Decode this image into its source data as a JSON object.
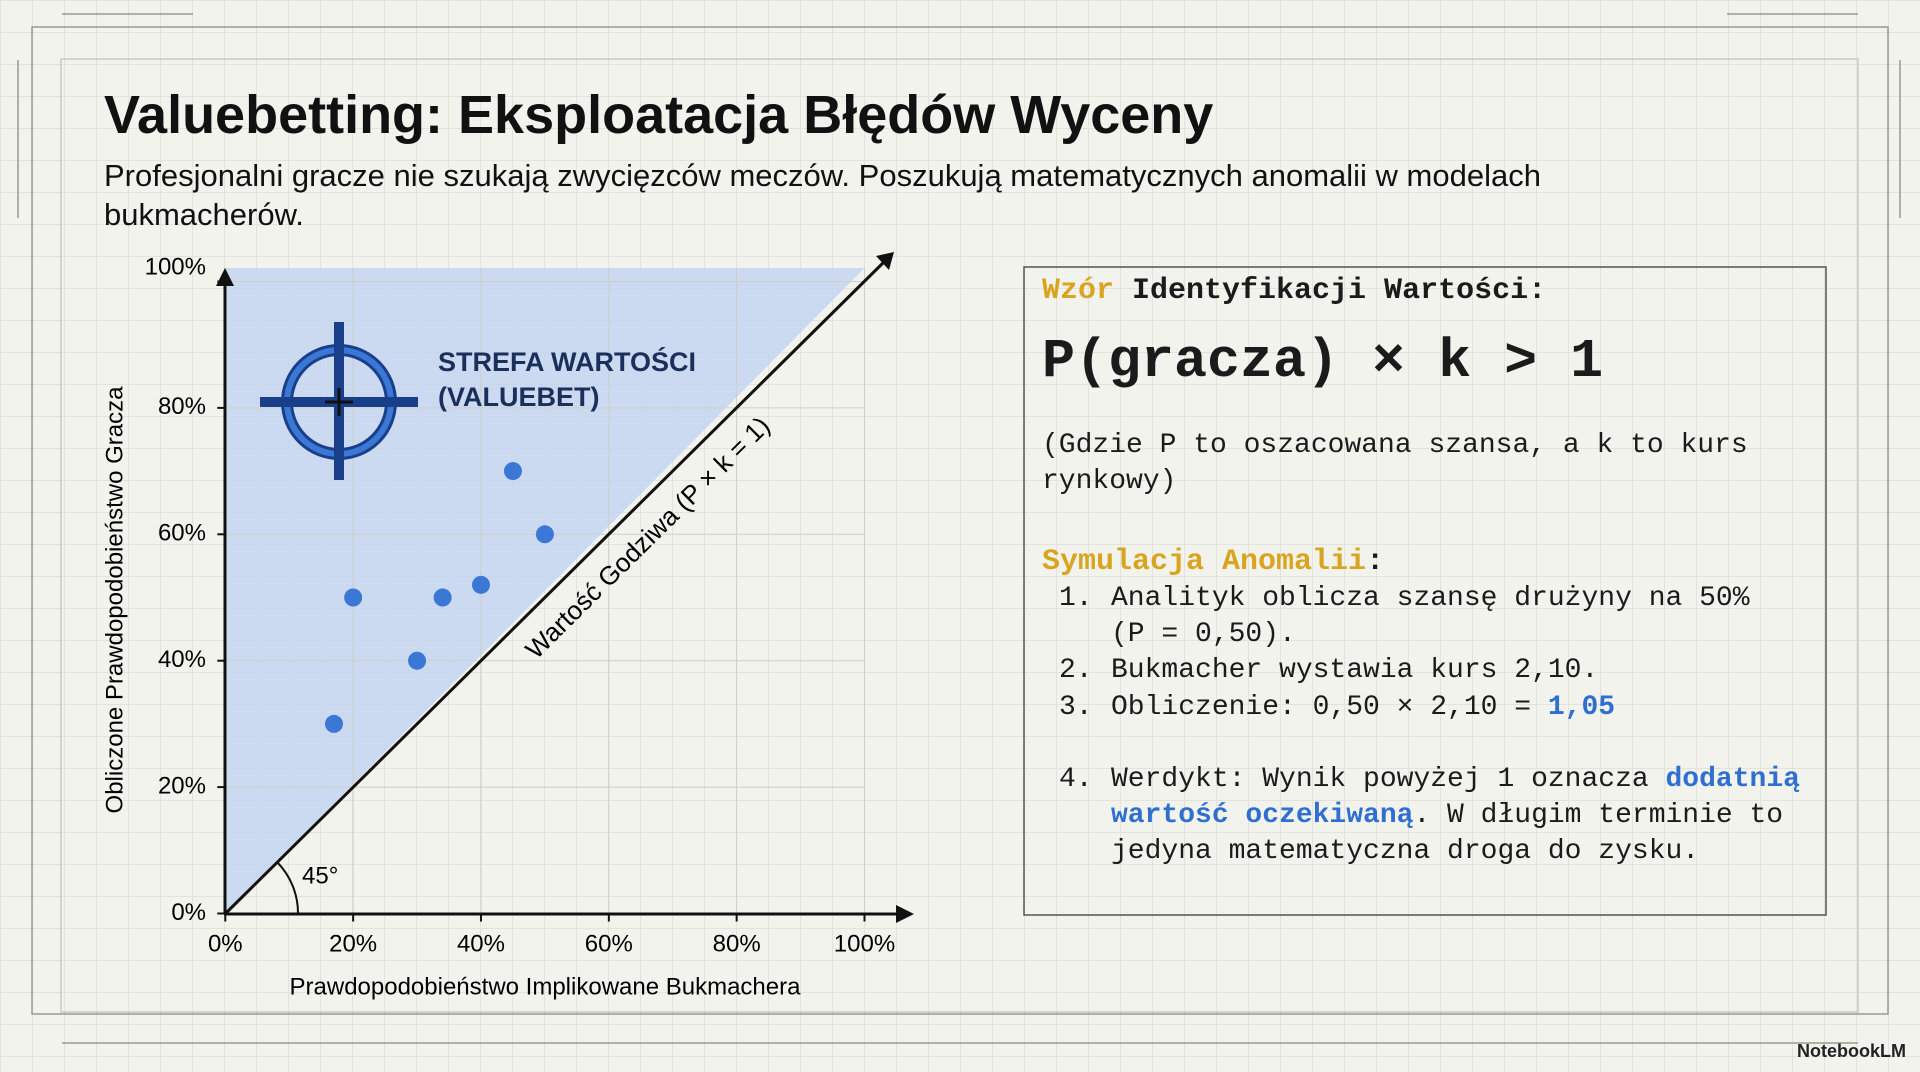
{
  "header": {
    "title": "Valuebetting: Eksploatacja Błędów Wyceny",
    "subtitle": "Profesjonalni gracze nie szukają zwycięzców meczów. Poszukują matematycznych anomalii w modelach bukmacherów."
  },
  "chart_data": {
    "type": "scatter",
    "x": [
      17,
      20,
      30,
      34,
      40,
      45,
      50
    ],
    "values": [
      30,
      50,
      40,
      50,
      52,
      70,
      60
    ],
    "color": "#3b78d6",
    "zone_color": "#c3d5f1",
    "xlim": [
      0,
      100
    ],
    "ylim": [
      0,
      100
    ],
    "xticks": [
      {
        "value": 0,
        "label": "0%"
      },
      {
        "value": 20,
        "label": "20%"
      },
      {
        "value": 40,
        "label": "40%"
      },
      {
        "value": 60,
        "label": "60%"
      },
      {
        "value": 80,
        "label": "80%"
      },
      {
        "value": 100,
        "label": "100%"
      }
    ],
    "yticks": [
      {
        "value": 0,
        "label": "0%"
      },
      {
        "value": 20,
        "label": "20%"
      },
      {
        "value": 40,
        "label": "40%"
      },
      {
        "value": 60,
        "label": "60%"
      },
      {
        "value": 80,
        "label": "80%"
      },
      {
        "value": 100,
        "label": "100%"
      }
    ],
    "x_label": "Prawdopodobieństwo Implikowane Bukmachera",
    "y_label": "Obliczone Prawdopodobieństwo Gracza",
    "grid": true,
    "annotations": [
      "STREFA WARTOŚCI",
      "(VALUEBET)",
      "Wartość Godziwa (P × k = 1)",
      "45°"
    ]
  },
  "panel": {
    "title": [
      {
        "text": "Wzór",
        "color": "#d9a520"
      },
      {
        "text": " Identyfikacji Wartości:"
      }
    ],
    "formula": "P(gracza) × k > 1",
    "note": [
      "(Gdzie P to oszacowana szansa, a k to kurs",
      "rynkowy)"
    ],
    "sim_title": [
      {
        "text": "Symulacja Anomalii",
        "color": "#d9a520"
      },
      {
        "text": ":"
      }
    ],
    "items": [
      {
        "marker": "1.",
        "lines": [
          [
            {
              "text": "Analityk oblicza szansę drużyny na 50%"
            }
          ],
          [
            {
              "text": "(P = 0,50)."
            }
          ]
        ]
      },
      {
        "marker": "2.",
        "lines": [
          [
            {
              "text": "Bukmacher wystawia kurs 2,10."
            }
          ]
        ]
      },
      {
        "marker": "3.",
        "lines": [
          [
            {
              "text": "Obliczenie: 0,50 × 2,10 = "
            },
            {
              "text": "1,05",
              "color": "#2f6fd0"
            }
          ]
        ]
      },
      {
        "marker": "4.",
        "lines": [
          [
            {
              "text": "Werdykt: Wynik powyżej 1 oznacza "
            },
            {
              "text": "dodatnią",
              "color": "#2f6fd0"
            }
          ],
          [
            {
              "text": "wartość oczekiwaną",
              "color": "#2f6fd0"
            },
            {
              "text": ". W długim terminie to"
            }
          ],
          [
            {
              "text": "jedyna matematyczna droga do zysku."
            }
          ]
        ]
      }
    ]
  },
  "footer": {
    "brand": "NotebookLM"
  }
}
